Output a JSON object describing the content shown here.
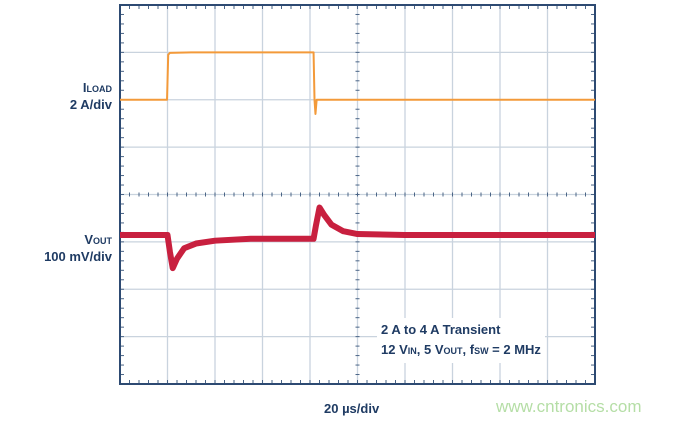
{
  "chart_data": {
    "type": "line",
    "xlabel": "20 µs/div",
    "x_unit": "µs",
    "xlim": [
      0,
      200
    ],
    "grid": true,
    "series": [
      {
        "name": "ILOAD",
        "scale": "2 A/div",
        "unit": "A",
        "color": "#f39a3a",
        "x": [
          0,
          19.8,
          20.3,
          21,
          30,
          60,
          81.5,
          81.9,
          82.3,
          82.8,
          84,
          200
        ],
        "y": [
          2,
          2,
          3.9,
          3.98,
          4,
          4,
          4,
          2.0,
          1.4,
          2.0,
          2.0,
          2.0
        ]
      },
      {
        "name": "VOUT",
        "scale": "100 mV/div",
        "unit": "mV (AC)",
        "color": "#c8203f",
        "x": [
          0,
          20,
          21,
          22.2,
          24,
          27,
          32,
          40,
          55,
          80,
          81.5,
          82.5,
          84,
          86,
          89,
          94,
          100,
          120,
          200
        ],
        "y": [
          0,
          0,
          -35,
          -70,
          -50,
          -28,
          -18,
          -12,
          -8,
          -8,
          -8,
          20,
          58,
          42,
          22,
          8,
          2,
          0,
          0
        ]
      }
    ],
    "labels": {
      "iload_main": "I",
      "iload_sub": "LOAD",
      "iload_scale": "2 A/div",
      "vout_main": "V",
      "vout_sub": "OUT",
      "vout_scale": "100 mV/div"
    },
    "annotation": {
      "line1": "2 A to 4 A Transient",
      "vin": "12 V",
      "vin_sub": "IN",
      "vout": ", 5 V",
      "vout_sub": "OUT",
      "fsw": ", f",
      "fsw_sub": "SW",
      "fsw_val": " = 2 MHz"
    }
  },
  "watermark": "www.cntronics.com"
}
